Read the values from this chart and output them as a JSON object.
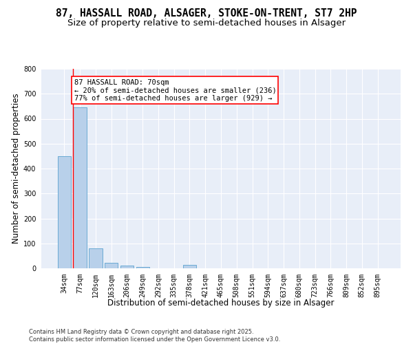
{
  "title_line1": "87, HASSALL ROAD, ALSAGER, STOKE-ON-TRENT, ST7 2HP",
  "title_line2": "Size of property relative to semi-detached houses in Alsager",
  "xlabel": "Distribution of semi-detached houses by size in Alsager",
  "ylabel": "Number of semi-detached properties",
  "categories": [
    "34sqm",
    "77sqm",
    "120sqm",
    "163sqm",
    "206sqm",
    "249sqm",
    "292sqm",
    "335sqm",
    "378sqm",
    "421sqm",
    "465sqm",
    "508sqm",
    "551sqm",
    "594sqm",
    "637sqm",
    "680sqm",
    "723sqm",
    "766sqm",
    "809sqm",
    "852sqm",
    "895sqm"
  ],
  "values": [
    450,
    645,
    80,
    22,
    10,
    5,
    0,
    0,
    15,
    0,
    0,
    0,
    0,
    0,
    0,
    0,
    0,
    0,
    0,
    0,
    0
  ],
  "bar_color": "#b8d0ea",
  "bar_edge_color": "#6aaad4",
  "annotation_title": "87 HASSALL ROAD: 70sqm",
  "annotation_line1": "← 20% of semi-detached houses are smaller (236)",
  "annotation_line2": "77% of semi-detached houses are larger (929) →",
  "annotation_box_color": "white",
  "annotation_box_edge_color": "red",
  "line_color": "red",
  "footer_line1": "Contains HM Land Registry data © Crown copyright and database right 2025.",
  "footer_line2": "Contains public sector information licensed under the Open Government Licence v3.0.",
  "ylim": [
    0,
    800
  ],
  "yticks": [
    0,
    100,
    200,
    300,
    400,
    500,
    600,
    700,
    800
  ],
  "background_color": "#e8eef8",
  "grid_color": "white",
  "title_fontsize": 10.5,
  "subtitle_fontsize": 9.5,
  "axis_label_fontsize": 8.5,
  "tick_fontsize": 7,
  "annotation_fontsize": 7.5,
  "footer_fontsize": 6
}
